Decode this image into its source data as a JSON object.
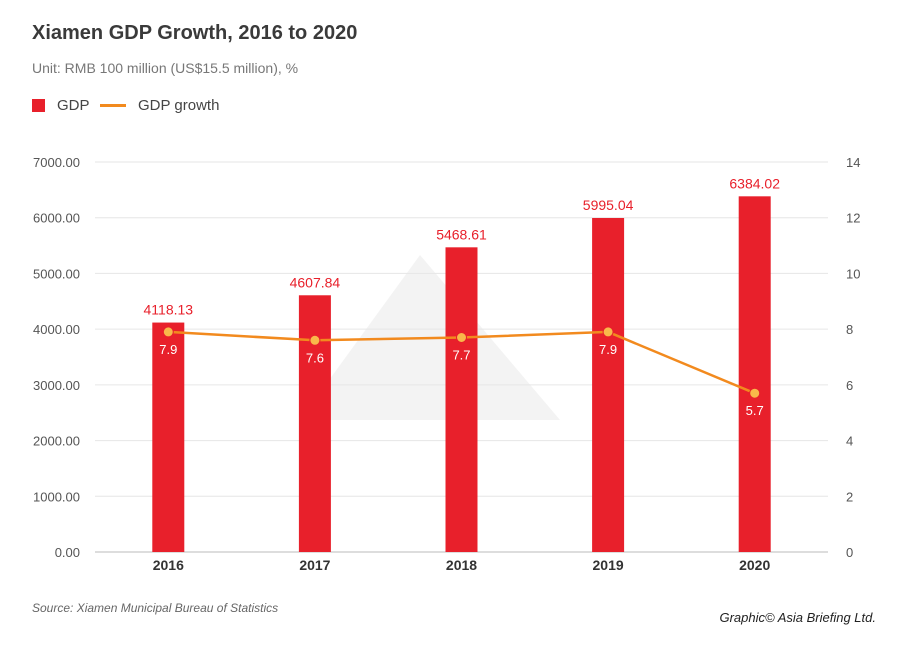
{
  "chart_data": {
    "type": "bar",
    "title": "Xiamen GDP Growth, 2016 to 2020",
    "subtitle": "Unit: RMB 100 million (US$15.5 million), %",
    "categories": [
      "2016",
      "2017",
      "2018",
      "2019",
      "2020"
    ],
    "series": [
      {
        "name": "GDP",
        "type": "bar",
        "axis": "left",
        "color": "#e8202b",
        "values": [
          4118.13,
          4607.84,
          5468.61,
          5995.04,
          6384.02
        ],
        "labels": [
          "4118.13",
          "4607.84",
          "5468.61",
          "5995.04",
          "6384.02"
        ]
      },
      {
        "name": "GDP growth",
        "type": "line",
        "axis": "right",
        "color": "#f28a1e",
        "values": [
          7.9,
          7.6,
          7.7,
          7.9,
          5.7
        ],
        "labels": [
          "7.9",
          "7.6",
          "7.7",
          "7.9",
          "5.7"
        ]
      }
    ],
    "left_axis": {
      "ylim": [
        0,
        7000
      ],
      "ticks": [
        "0.00",
        "1000.00",
        "2000.00",
        "3000.00",
        "4000.00",
        "5000.00",
        "6000.00",
        "7000.00"
      ]
    },
    "right_axis": {
      "ylim": [
        0,
        14
      ],
      "ticks": [
        "0",
        "2",
        "4",
        "6",
        "8",
        "10",
        "12",
        "14"
      ]
    },
    "grid": true,
    "legend": "top-left"
  },
  "footer": {
    "source": "Source: Xiamen Municipal Bureau of Statistics",
    "credit": "Graphic© Asia Briefing Ltd."
  }
}
